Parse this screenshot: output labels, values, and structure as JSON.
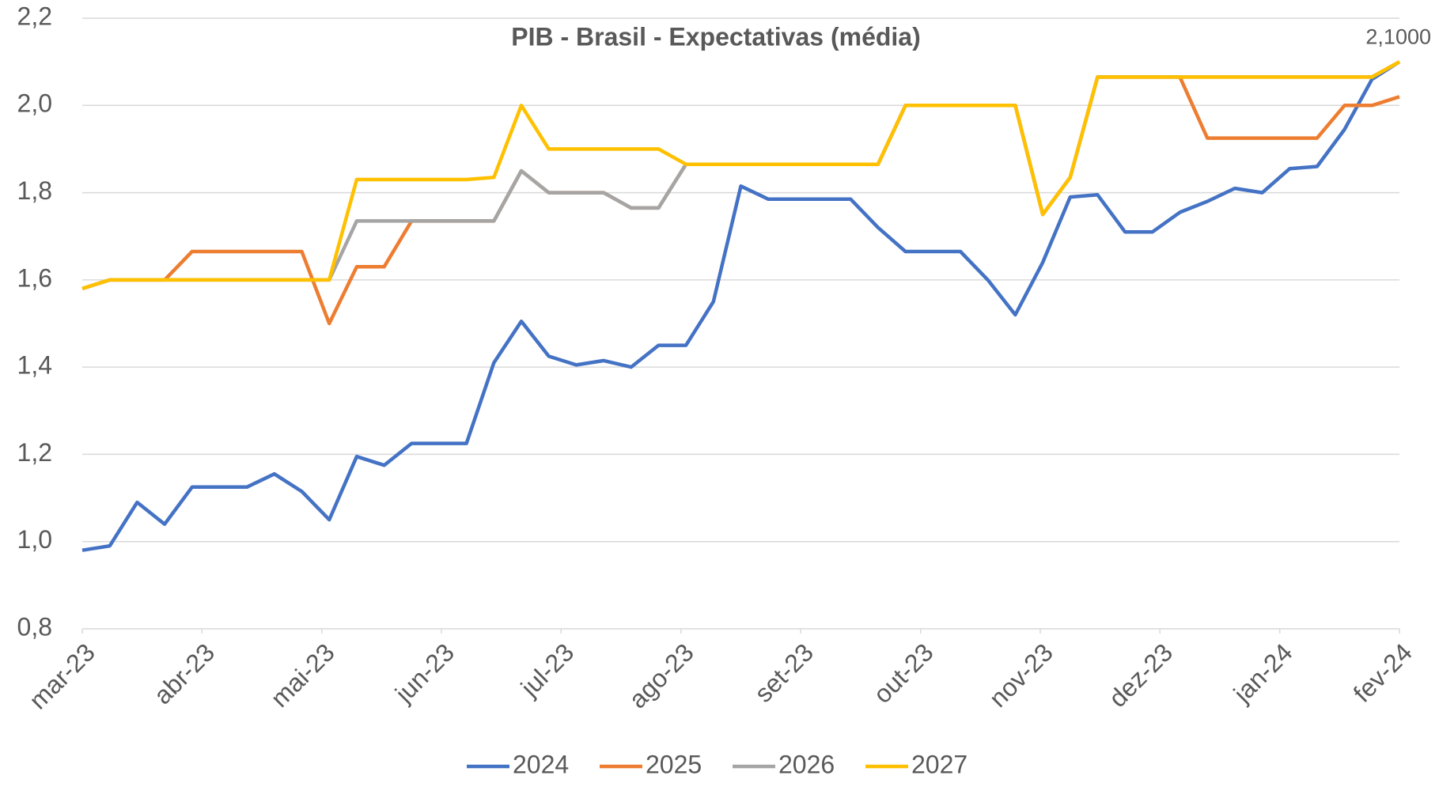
{
  "chart_data": {
    "type": "line",
    "title": "PIB - Brasil - Expectativas (média)",
    "x": [
      0,
      1,
      2,
      3,
      4,
      5,
      6,
      7,
      8,
      9,
      10,
      11,
      12,
      13,
      14,
      15,
      16,
      17,
      18,
      19,
      20,
      21,
      22,
      23,
      24,
      25,
      26,
      27,
      28,
      29,
      30,
      31,
      32,
      33,
      34,
      35,
      36,
      37,
      38,
      39,
      40,
      41,
      42,
      43,
      44,
      45,
      46,
      47,
      48
    ],
    "xlim": [
      0,
      48
    ],
    "xticks": [
      {
        "value": 0,
        "label": "mar-23"
      },
      {
        "value": 4.36,
        "label": "abr-23"
      },
      {
        "value": 8.73,
        "label": "mai-23"
      },
      {
        "value": 13.09,
        "label": "jun-23"
      },
      {
        "value": 17.45,
        "label": "jul-23"
      },
      {
        "value": 21.82,
        "label": "ago-23"
      },
      {
        "value": 26.18,
        "label": "set-23"
      },
      {
        "value": 30.55,
        "label": "out-23"
      },
      {
        "value": 34.91,
        "label": "nov-23"
      },
      {
        "value": 39.27,
        "label": "dez-23"
      },
      {
        "value": 43.64,
        "label": "jan-24"
      },
      {
        "value": 48,
        "label": "fev-24"
      }
    ],
    "ylim": [
      0.8,
      2.2
    ],
    "yticks": [
      {
        "value": 0.8,
        "label": "0,8"
      },
      {
        "value": 1.0,
        "label": "1,0"
      },
      {
        "value": 1.2,
        "label": "1,2"
      },
      {
        "value": 1.4,
        "label": "1,4"
      },
      {
        "value": 1.6,
        "label": "1,6"
      },
      {
        "value": 1.8,
        "label": "1,8"
      },
      {
        "value": 2.0,
        "label": "2,0"
      },
      {
        "value": 2.2,
        "label": "2,2"
      }
    ],
    "grid": true,
    "legend": "bottom",
    "series": [
      {
        "name": "2024",
        "color": "#4472c4",
        "values": [
          0.98,
          0.99,
          1.09,
          1.04,
          1.125,
          1.125,
          1.125,
          1.155,
          1.115,
          1.05,
          1.195,
          1.175,
          1.225,
          1.225,
          1.225,
          1.41,
          1.505,
          1.425,
          1.405,
          1.415,
          1.4,
          1.45,
          1.45,
          1.55,
          1.815,
          1.785,
          1.785,
          1.785,
          1.785,
          1.72,
          1.665,
          1.665,
          1.665,
          1.6,
          1.52,
          1.64,
          1.79,
          1.795,
          1.71,
          1.71,
          1.755,
          1.78,
          1.81,
          1.8,
          1.855,
          1.86,
          1.945,
          2.06,
          2.1
        ],
        "value_labels": [
          null,
          null,
          null,
          null,
          null,
          null,
          null,
          null,
          null,
          null,
          null,
          null,
          null,
          null,
          null,
          null,
          null,
          null,
          null,
          null,
          null,
          null,
          null,
          null,
          null,
          null,
          null,
          null,
          null,
          null,
          null,
          null,
          null,
          null,
          null,
          null,
          null,
          null,
          null,
          null,
          null,
          null,
          null,
          null,
          null,
          null,
          null,
          null,
          "2,1000"
        ]
      },
      {
        "name": "2025",
        "color": "#ed7d31",
        "values": [
          1.58,
          1.6,
          1.6,
          1.6,
          1.665,
          1.665,
          1.665,
          1.665,
          1.665,
          1.5,
          1.63,
          1.63,
          1.735,
          1.735,
          1.735,
          1.735,
          1.85,
          1.8,
          1.8,
          1.8,
          1.765,
          1.765,
          1.865,
          1.865,
          1.865,
          1.865,
          1.865,
          1.865,
          1.865,
          1.865,
          2.0,
          2.0,
          2.0,
          2.0,
          2.0,
          1.75,
          1.835,
          2.065,
          2.065,
          2.065,
          2.065,
          1.925,
          1.925,
          1.925,
          1.925,
          1.925,
          2.0,
          2.0,
          2.02
        ]
      },
      {
        "name": "2026",
        "color": "#a5a5a5",
        "values": [
          1.58,
          1.6,
          1.6,
          1.6,
          1.6,
          1.6,
          1.6,
          1.6,
          1.6,
          1.6,
          1.735,
          1.735,
          1.735,
          1.735,
          1.735,
          1.735,
          1.85,
          1.8,
          1.8,
          1.8,
          1.765,
          1.765,
          1.865,
          1.865,
          1.865,
          1.865,
          1.865,
          1.865,
          1.865,
          1.865,
          2.0,
          2.0,
          2.0,
          2.0,
          2.0,
          1.75,
          1.835,
          2.065,
          2.065,
          2.065,
          2.065,
          2.065,
          2.065,
          2.065,
          2.065,
          2.065,
          2.065,
          2.065,
          2.1
        ]
      },
      {
        "name": "2027",
        "color": "#ffc000",
        "values": [
          1.58,
          1.6,
          1.6,
          1.6,
          1.6,
          1.6,
          1.6,
          1.6,
          1.6,
          1.6,
          1.83,
          1.83,
          1.83,
          1.83,
          1.83,
          1.835,
          2.0,
          1.9,
          1.9,
          1.9,
          1.9,
          1.9,
          1.865,
          1.865,
          1.865,
          1.865,
          1.865,
          1.865,
          1.865,
          1.865,
          2.0,
          2.0,
          2.0,
          2.0,
          2.0,
          1.75,
          1.835,
          2.065,
          2.065,
          2.065,
          2.065,
          2.065,
          2.065,
          2.065,
          2.065,
          2.065,
          2.065,
          2.065,
          2.1
        ]
      }
    ]
  }
}
